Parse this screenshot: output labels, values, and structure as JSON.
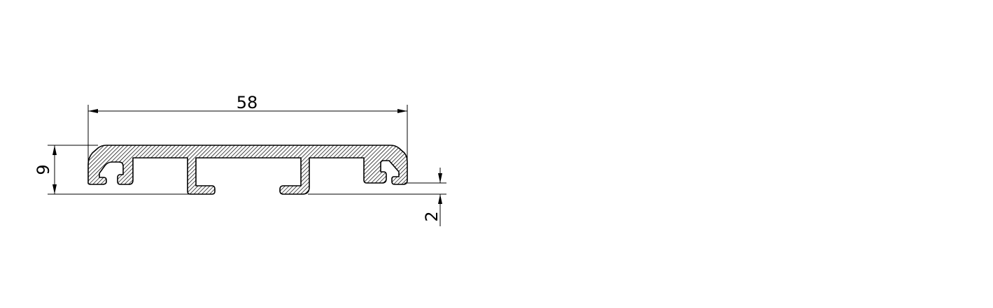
{
  "drawing": {
    "dimensions": {
      "width": "58",
      "height": "9",
      "thickness": "2"
    },
    "colors": {
      "line": "#000000",
      "hatch": "#000000",
      "background": "#ffffff"
    }
  }
}
